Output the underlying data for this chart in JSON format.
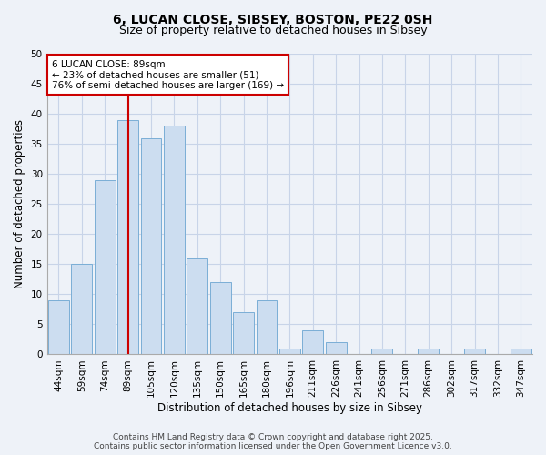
{
  "title": "6, LUCAN CLOSE, SIBSEY, BOSTON, PE22 0SH",
  "subtitle": "Size of property relative to detached houses in Sibsey",
  "xlabel": "Distribution of detached houses by size in Sibsey",
  "ylabel": "Number of detached properties",
  "bar_labels": [
    "44sqm",
    "59sqm",
    "74sqm",
    "89sqm",
    "105sqm",
    "120sqm",
    "135sqm",
    "150sqm",
    "165sqm",
    "180sqm",
    "196sqm",
    "211sqm",
    "226sqm",
    "241sqm",
    "256sqm",
    "271sqm",
    "286sqm",
    "302sqm",
    "317sqm",
    "332sqm",
    "347sqm"
  ],
  "bar_values": [
    9,
    15,
    29,
    39,
    36,
    38,
    16,
    12,
    7,
    9,
    1,
    4,
    2,
    0,
    1,
    0,
    1,
    0,
    1,
    0,
    1
  ],
  "bar_color": "#ccddf0",
  "bar_edge_color": "#7aaed6",
  "highlight_index": 3,
  "highlight_line_color": "#cc0000",
  "ylim": [
    0,
    50
  ],
  "yticks": [
    0,
    5,
    10,
    15,
    20,
    25,
    30,
    35,
    40,
    45,
    50
  ],
  "annotation_title": "6 LUCAN CLOSE: 89sqm",
  "annotation_line1": "← 23% of detached houses are smaller (51)",
  "annotation_line2": "76% of semi-detached houses are larger (169) →",
  "annotation_box_edge": "#cc0000",
  "footer_line1": "Contains HM Land Registry data © Crown copyright and database right 2025.",
  "footer_line2": "Contains public sector information licensed under the Open Government Licence v3.0.",
  "background_color": "#eef2f8",
  "grid_color": "#c8d4e8",
  "title_fontsize": 10,
  "subtitle_fontsize": 9,
  "axis_label_fontsize": 8.5,
  "tick_fontsize": 7.5,
  "annotation_fontsize": 7.5,
  "footer_fontsize": 6.5
}
